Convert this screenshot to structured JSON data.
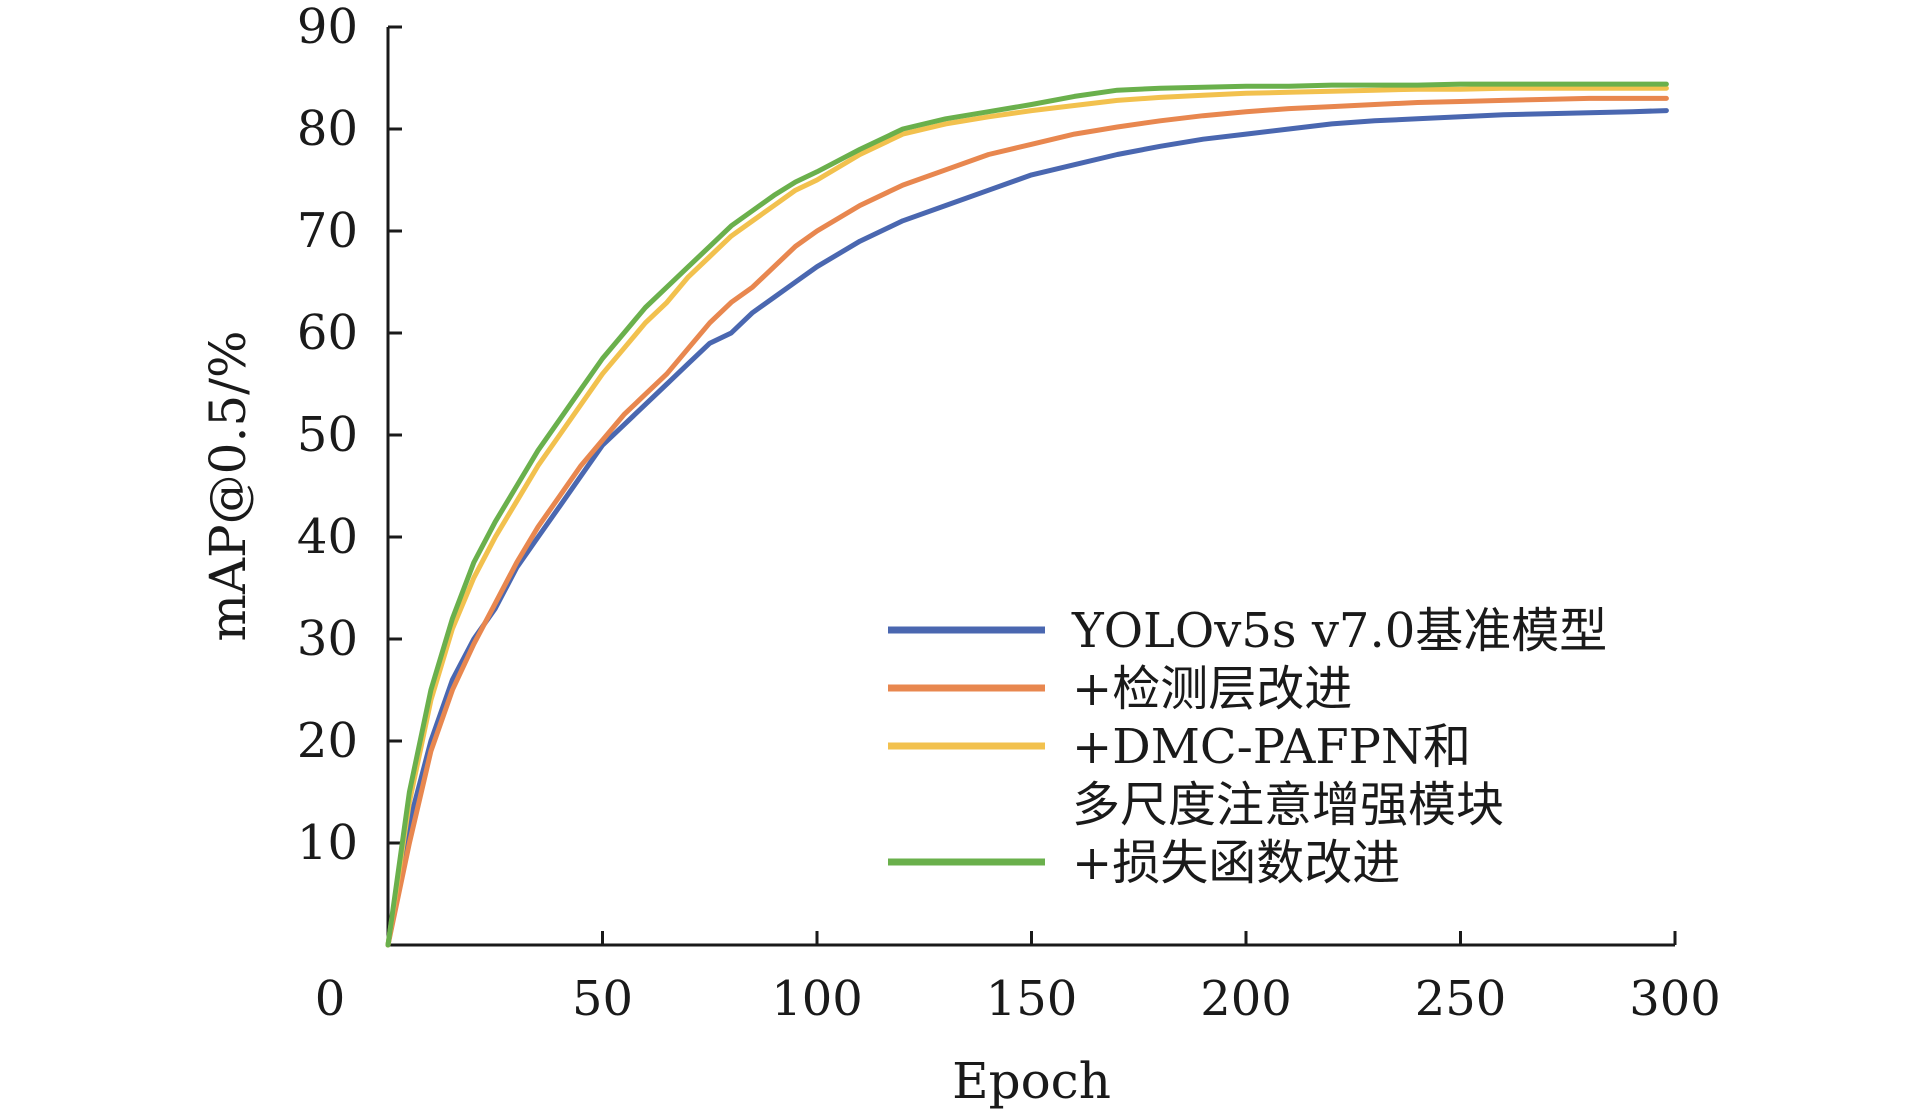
{
  "chart_data": {
    "type": "line",
    "title": "",
    "xlabel": "Epoch",
    "ylabel": "mAP@0.5/%",
    "xlim": [
      0,
      300
    ],
    "ylim": [
      0,
      90
    ],
    "x_ticks": [
      0,
      50,
      100,
      150,
      200,
      250,
      300
    ],
    "y_ticks": [
      10,
      20,
      30,
      40,
      50,
      60,
      70,
      80,
      90
    ],
    "grid": false,
    "legend_position": "bottom-right",
    "x": [
      0,
      5,
      10,
      15,
      20,
      25,
      30,
      35,
      40,
      45,
      50,
      55,
      60,
      65,
      70,
      75,
      80,
      85,
      90,
      95,
      100,
      110,
      120,
      130,
      140,
      150,
      160,
      170,
      180,
      190,
      200,
      210,
      220,
      230,
      240,
      250,
      260,
      270,
      280,
      290,
      298
    ],
    "series": [
      {
        "name": "YOLOv5s v7.0基准模型",
        "color": "#4a67b0",
        "values": [
          0,
          12,
          20,
          26,
          30,
          33,
          37,
          40,
          43,
          46,
          49,
          51,
          53,
          55,
          57,
          59,
          60,
          62,
          63.5,
          65,
          66.5,
          69,
          71,
          72.5,
          74,
          75.5,
          76.5,
          77.5,
          78.3,
          79,
          79.5,
          80,
          80.5,
          80.8,
          81,
          81.2,
          81.4,
          81.5,
          81.6,
          81.7,
          81.8
        ]
      },
      {
        "name": "+检测层改进",
        "color": "#e8874f",
        "values": [
          0,
          10,
          19,
          25,
          29.5,
          33.5,
          37.5,
          41,
          44,
          47,
          49.5,
          52,
          54,
          56,
          58.5,
          61,
          63,
          64.5,
          66.5,
          68.5,
          70,
          72.5,
          74.5,
          76,
          77.5,
          78.5,
          79.5,
          80.2,
          80.8,
          81.3,
          81.7,
          82,
          82.2,
          82.4,
          82.6,
          82.7,
          82.8,
          82.9,
          83,
          83,
          83
        ]
      },
      {
        "name": "+DMC-PAFPN和多尺度注意增强模块",
        "color": "#f2c14e",
        "values": [
          0,
          14,
          24,
          31,
          36,
          40,
          43.5,
          47,
          50,
          53,
          56,
          58.5,
          61,
          63,
          65.5,
          67.5,
          69.5,
          71,
          72.5,
          74,
          75,
          77.5,
          79.5,
          80.5,
          81.2,
          81.8,
          82.3,
          82.8,
          83.1,
          83.3,
          83.5,
          83.6,
          83.7,
          83.8,
          83.9,
          83.9,
          84,
          84,
          84,
          84,
          84
        ]
      },
      {
        "name": "+损失函数改进",
        "color": "#6ab04c",
        "values": [
          0,
          15,
          25,
          32,
          37.5,
          41.5,
          45,
          48.5,
          51.5,
          54.5,
          57.5,
          60,
          62.5,
          64.5,
          66.5,
          68.5,
          70.5,
          72,
          73.5,
          74.8,
          75.8,
          78,
          80,
          81,
          81.7,
          82.4,
          83.2,
          83.8,
          84,
          84.1,
          84.2,
          84.2,
          84.3,
          84.3,
          84.3,
          84.4,
          84.4,
          84.4,
          84.4,
          84.4,
          84.4
        ]
      }
    ],
    "legend_labels": [
      [
        "YOLOv5s v7.0基准模型"
      ],
      [
        "+检测层改进"
      ],
      [
        "+DMC-PAFPN和",
        "多尺度注意增强模块"
      ],
      [
        "+损失函数改进"
      ]
    ]
  }
}
